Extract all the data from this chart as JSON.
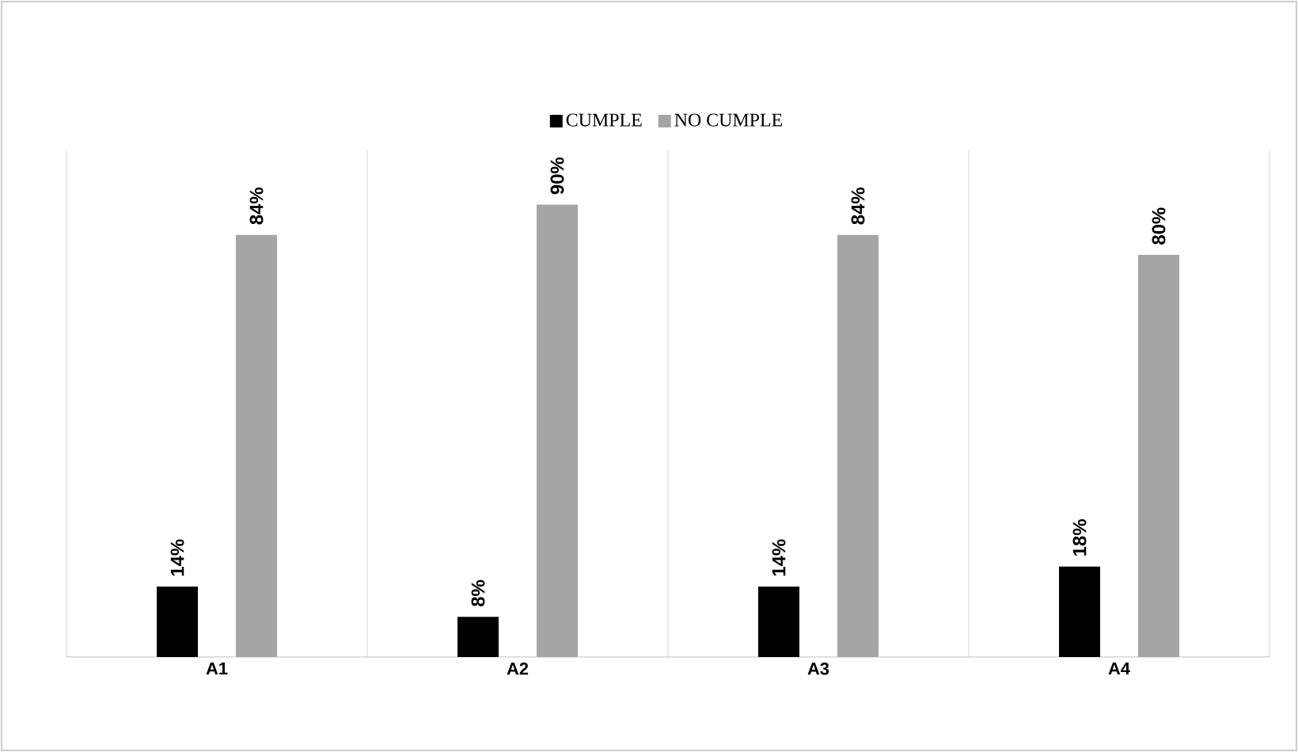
{
  "chart_data": {
    "type": "bar",
    "categories": [
      "A1",
      "A2",
      "A3",
      "A4"
    ],
    "series": [
      {
        "name": "CUMPLE",
        "color": "#000000",
        "values": [
          14,
          8,
          14,
          18
        ],
        "value_labels": [
          "14%",
          "8%",
          "14%",
          "18%"
        ]
      },
      {
        "name": "NO CUMPLE",
        "color": "#a5a5a5",
        "values": [
          84,
          90,
          84,
          80
        ],
        "value_labels": [
          "84%",
          "90%",
          "84%",
          "80%"
        ]
      }
    ],
    "grid": "x",
    "legend": "top"
  }
}
